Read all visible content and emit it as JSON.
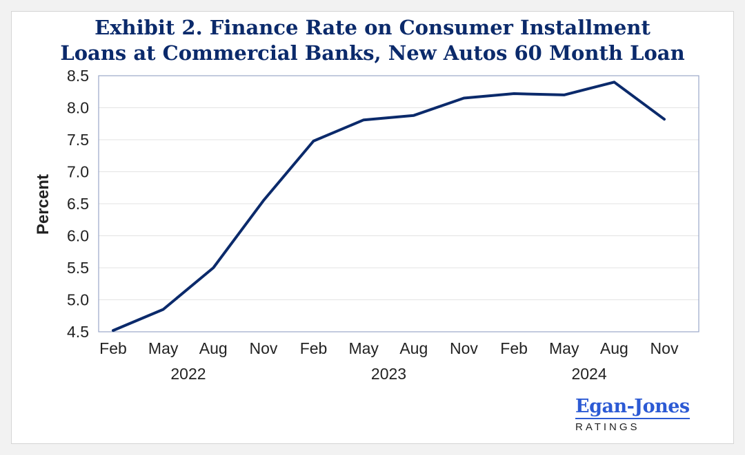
{
  "title_lines": [
    "Exhibit 2. Finance Rate on Consumer Installment",
    "Loans at Commercial Banks, New Autos 60 Month Loan"
  ],
  "colors": {
    "title": "#0b2a6b",
    "line": "#0b2a6b",
    "grid": "#e3e3e3",
    "frame": "#9aa7c7",
    "logo": "#2c5ad4"
  },
  "logo": {
    "name": "Egan-Jones",
    "sub": "RATINGS"
  },
  "chart_data": {
    "type": "line",
    "title": "Exhibit 2. Finance Rate on Consumer Installment Loans at Commercial Banks, New Autos 60 Month Loan",
    "ylabel": "Percent",
    "xlabel": "",
    "ylim": [
      4.5,
      8.5
    ],
    "yticks": [
      "4.5",
      "5.0",
      "5.5",
      "6.0",
      "6.5",
      "7.0",
      "7.5",
      "8.0",
      "8.5"
    ],
    "grid": true,
    "categories": [
      "Feb",
      "May",
      "Aug",
      "Nov",
      "Feb",
      "May",
      "Aug",
      "Nov",
      "Feb",
      "May",
      "Aug",
      "Nov"
    ],
    "year_labels": [
      "2022",
      "2023",
      "2024"
    ],
    "series": [
      {
        "values": [
          4.52,
          4.85,
          5.5,
          6.55,
          7.48,
          7.81,
          7.88,
          8.15,
          8.22,
          8.2,
          8.4,
          7.82
        ]
      }
    ]
  }
}
